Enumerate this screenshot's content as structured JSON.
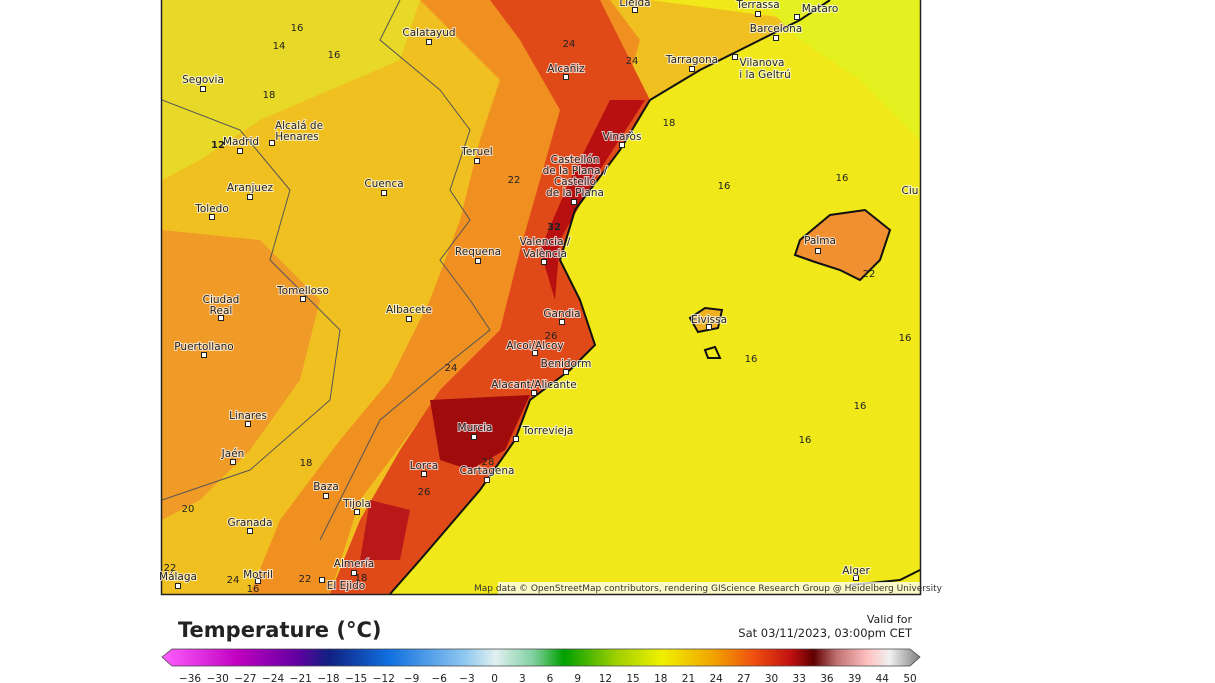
{
  "map": {
    "cities": [
      "Lleida",
      "Terrassa",
      "Mataro",
      "Barcelona",
      "Calatayud",
      "Alcañiz",
      "Tarragona",
      "Vilanova",
      "i la Geltrú",
      "Segovia",
      "Madrid",
      "Alcalá de",
      "Henares",
      "Teruel",
      "Vinaròs",
      "Castellón",
      "de la Plana /",
      "Castelló",
      "de la Plana",
      "Cuenca",
      "Aranjuez",
      "Toledo",
      "Valencia /",
      "València",
      "Requena",
      "Palma",
      "Ciudad",
      "Real",
      "Tomelloso",
      "Albacete",
      "Gandia",
      "Eivissa",
      "Puertollano",
      "Alcoi/Alcoy",
      "Benidorm",
      "Alacant/Alicante",
      "Linares",
      "Murcia",
      "Torrevieja",
      "Jaén",
      "Lorca",
      "Cartagena",
      "Baza",
      "Tijola",
      "Granada",
      "Almería",
      "Motril",
      "El Ejido",
      "Málaga",
      "Alger",
      "Ciu"
    ],
    "contour_labels": [
      "16",
      "14",
      "16",
      "18",
      "12",
      "24",
      "24",
      "18",
      "22",
      "32",
      "16",
      "16",
      "22",
      "16",
      "16",
      "26",
      "24",
      "16",
      "16",
      "28",
      "26",
      "18",
      "20",
      "22",
      "24",
      "22",
      "18",
      "16"
    ],
    "attribution": "Map data © OpenStreetMap contributors, rendering GIScience Research Group @ Heidelberg University"
  },
  "legend": {
    "title": "Temperature (°C)",
    "valid_for": "Valid for",
    "valid_time": "Sat 03/11/2023, 03:00pm CET",
    "ticks": [
      "−36",
      "−30",
      "−27",
      "−24",
      "−21",
      "−18",
      "−15",
      "−12",
      "−9",
      "−6",
      "−3",
      "0",
      "3",
      "6",
      "9",
      "12",
      "15",
      "18",
      "21",
      "24",
      "27",
      "30",
      "33",
      "36",
      "39",
      "44",
      "50"
    ]
  }
}
